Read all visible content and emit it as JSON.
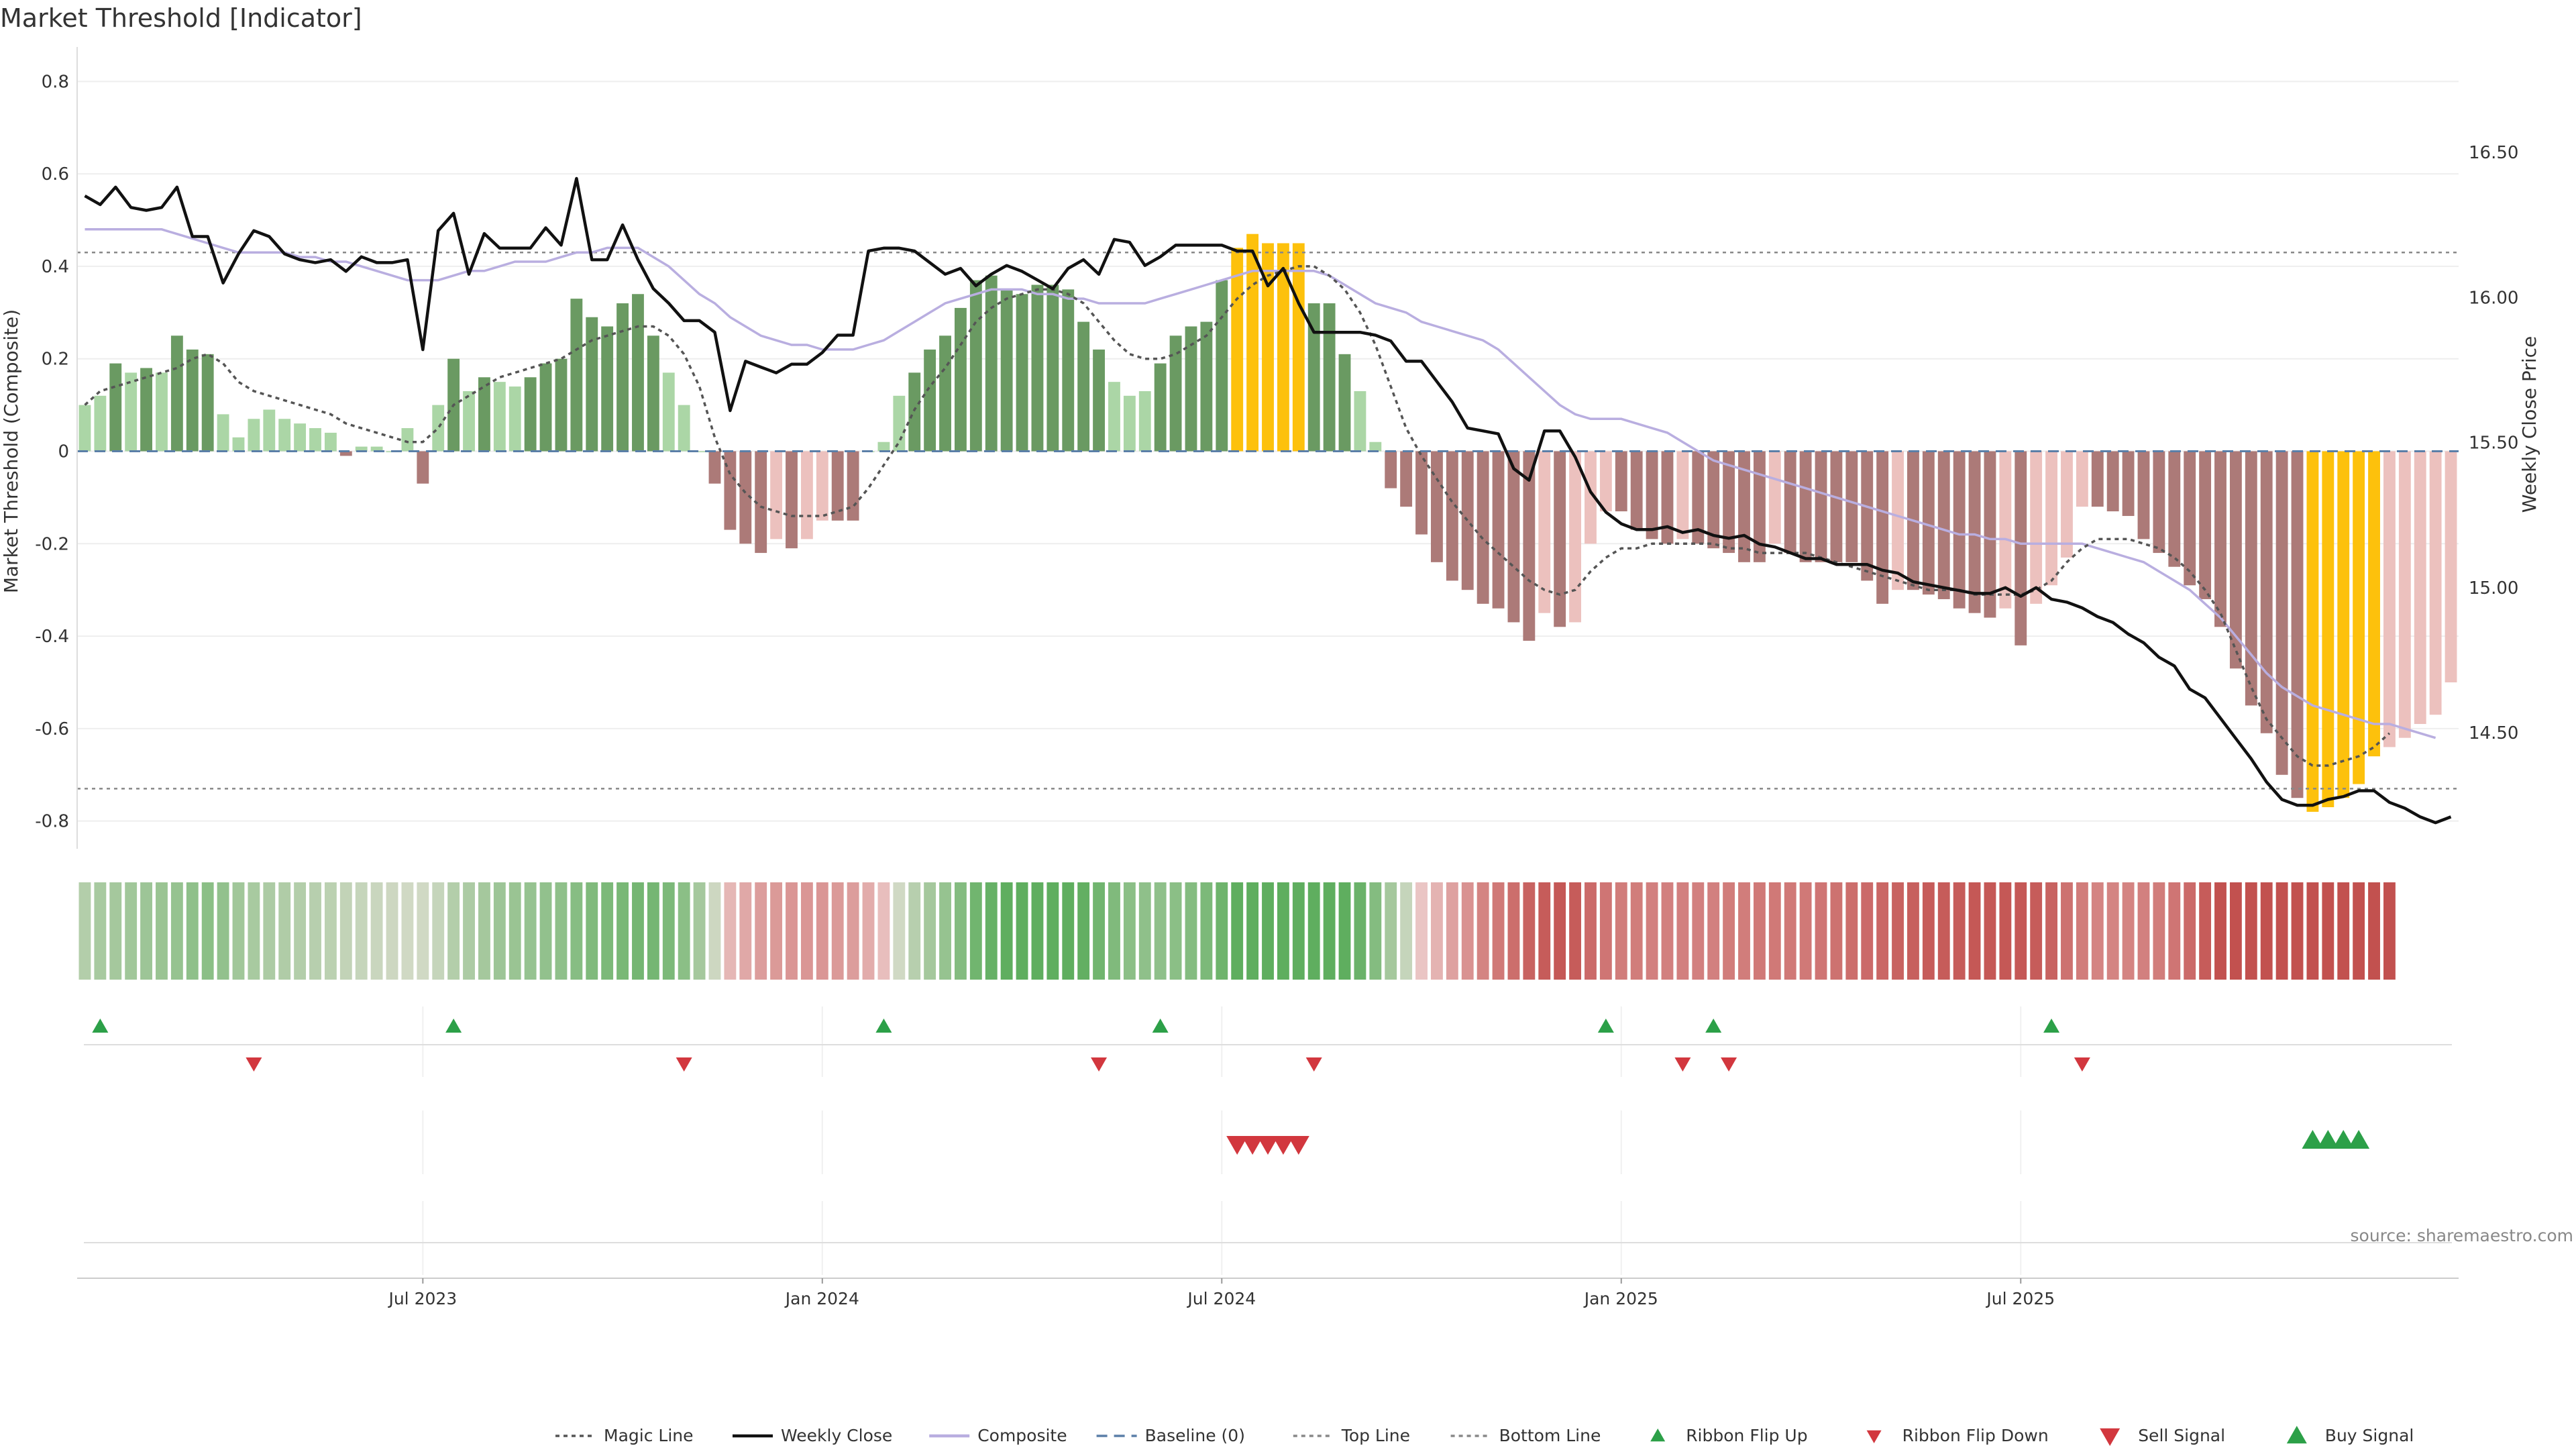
{
  "title": "Market Threshold [Indicator]",
  "source": "source: sharemaestro.com",
  "colors": {
    "bar_pos_strong": "#6a9a62",
    "bar_pos_weak": "#abd6a6",
    "bar_neg_strong": "#ac7a78",
    "bar_neg_weak": "#ecc1be",
    "highlight": "#fdc10c",
    "close_line": "#111111",
    "composite_line": "#b9aee0",
    "magic_line": "#555555",
    "baseline": "#5b7fa8",
    "level_line": "#888888",
    "flip_up": "#2ca048",
    "flip_down": "#d2373e",
    "ribbon_green": "#5fae5f",
    "ribbon_red": "#c2514f"
  },
  "chart_data": {
    "type": "bar",
    "title": "Market Threshold [Indicator]",
    "ylabel": "Market Threshold (Composite)",
    "y2label": "Weekly Close Price",
    "ylim": [
      -0.86,
      0.86
    ],
    "y2lim": [
      14.1,
      16.84
    ],
    "yticks": [
      "0.8",
      "0.6",
      "0.4",
      "0.2",
      "0",
      "-0.2",
      "-0.4",
      "-0.6",
      "-0.8"
    ],
    "yticks_values": [
      0.8,
      0.6,
      0.4,
      0.2,
      0,
      -0.2,
      -0.4,
      -0.6,
      -0.8
    ],
    "y2ticks": [
      "16.50",
      "16.00",
      "15.50",
      "15.00",
      "14.50"
    ],
    "y2ticks_values": [
      16.5,
      16.0,
      15.5,
      15.0,
      14.5
    ],
    "xticks": [
      "Jul 2023",
      "Jan 2024",
      "Jul 2024",
      "Jan 2025",
      "Jul 2025"
    ],
    "xticks_index": [
      22,
      48,
      74,
      100,
      126
    ],
    "top_line": 0.43,
    "bottom_line": -0.73,
    "composite": [
      0.1,
      0.12,
      0.19,
      0.17,
      0.18,
      0.17,
      0.25,
      0.22,
      0.21,
      0.08,
      0.03,
      0.07,
      0.09,
      0.07,
      0.06,
      0.05,
      0.04,
      -0.01,
      0.01,
      0.01,
      0.0,
      0.05,
      -0.07,
      0.1,
      0.2,
      0.13,
      0.16,
      0.15,
      0.14,
      0.16,
      0.19,
      0.2,
      0.33,
      0.29,
      0.27,
      0.32,
      0.34,
      0.25,
      0.17,
      0.1,
      0.0,
      -0.07,
      -0.17,
      -0.2,
      -0.22,
      -0.19,
      -0.21,
      -0.19,
      -0.15,
      -0.15,
      -0.15,
      0.0,
      0.02,
      0.12,
      0.17,
      0.22,
      0.25,
      0.31,
      0.37,
      0.38,
      0.35,
      0.34,
      0.36,
      0.36,
      0.35,
      0.28,
      0.22,
      0.15,
      0.12,
      0.13,
      0.19,
      0.25,
      0.27,
      0.28,
      0.37,
      0.44,
      0.47,
      0.45,
      0.45,
      0.45,
      0.32,
      0.32,
      0.21,
      0.13,
      0.02,
      -0.08,
      -0.12,
      -0.18,
      -0.24,
      -0.28,
      -0.3,
      -0.33,
      -0.34,
      -0.37,
      -0.41,
      -0.35,
      -0.38,
      -0.37,
      -0.2,
      -0.13,
      -0.13,
      -0.17,
      -0.19,
      -0.2,
      -0.19,
      -0.2,
      -0.21,
      -0.22,
      -0.24,
      -0.24,
      -0.2,
      -0.22,
      -0.24,
      -0.24,
      -0.24,
      -0.24,
      -0.28,
      -0.33,
      -0.3,
      -0.3,
      -0.31,
      -0.32,
      -0.34,
      -0.35,
      -0.36,
      -0.34,
      -0.42,
      -0.33,
      -0.29,
      -0.23,
      -0.12,
      -0.12,
      -0.13,
      -0.14,
      -0.19,
      -0.22,
      -0.25,
      -0.29,
      -0.32,
      -0.38,
      -0.47,
      -0.55,
      -0.61,
      -0.7,
      -0.75,
      -0.78,
      -0.77,
      -0.75,
      -0.72,
      -0.66,
      -0.64,
      -0.62,
      -0.59,
      -0.57,
      -0.5
    ],
    "weekly_close": [
      16.35,
      16.32,
      16.38,
      16.31,
      16.3,
      16.31,
      16.38,
      16.21,
      16.21,
      16.05,
      16.15,
      16.23,
      16.21,
      16.15,
      16.13,
      16.12,
      16.13,
      16.09,
      16.14,
      16.12,
      16.12,
      16.13,
      15.82,
      16.23,
      16.29,
      16.08,
      16.22,
      16.17,
      16.17,
      16.17,
      16.24,
      16.18,
      16.41,
      16.13,
      16.13,
      16.25,
      16.13,
      16.03,
      15.98,
      15.92,
      15.92,
      15.88,
      15.61,
      15.78,
      15.76,
      15.74,
      15.77,
      15.77,
      15.81,
      15.87,
      15.87,
      16.16,
      16.17,
      16.17,
      16.16,
      16.12,
      16.08,
      16.1,
      16.04,
      16.08,
      16.11,
      16.09,
      16.06,
      16.03,
      16.1,
      16.13,
      16.08,
      16.2,
      16.19,
      16.11,
      16.14,
      16.18,
      16.18,
      16.18,
      16.18,
      16.16,
      16.16,
      16.04,
      16.1,
      15.98,
      15.88,
      15.88,
      15.88,
      15.88,
      15.87,
      15.85,
      15.78,
      15.78,
      15.71,
      15.64,
      15.55,
      15.54,
      15.53,
      15.41,
      15.37,
      15.54,
      15.54,
      15.45,
      15.33,
      15.26,
      15.22,
      15.2,
      15.2,
      15.21,
      15.19,
      15.2,
      15.18,
      15.17,
      15.18,
      15.15,
      15.14,
      15.12,
      15.1,
      15.1,
      15.08,
      15.08,
      15.08,
      15.06,
      15.05,
      15.02,
      15.01,
      15.0,
      14.99,
      14.98,
      14.98,
      15.0,
      14.97,
      15.0,
      14.96,
      14.95,
      14.93,
      14.9,
      14.88,
      14.84,
      14.81,
      14.76,
      14.73,
      14.65,
      14.62,
      14.55,
      14.48,
      14.41,
      14.33,
      14.27,
      14.25,
      14.25,
      14.27,
      14.28,
      14.3,
      14.3,
      14.26,
      14.24,
      14.21,
      14.19,
      14.21
    ],
    "magic_line": [
      0.1,
      0.13,
      0.14,
      0.15,
      0.16,
      0.17,
      0.18,
      0.2,
      0.21,
      0.19,
      0.15,
      0.13,
      0.12,
      0.11,
      0.1,
      0.09,
      0.08,
      0.06,
      0.05,
      0.04,
      0.03,
      0.02,
      0.02,
      0.05,
      0.1,
      0.12,
      0.14,
      0.16,
      0.17,
      0.18,
      0.19,
      0.2,
      0.22,
      0.24,
      0.25,
      0.26,
      0.27,
      0.27,
      0.25,
      0.21,
      0.14,
      0.03,
      -0.05,
      -0.09,
      -0.12,
      -0.13,
      -0.14,
      -0.14,
      -0.14,
      -0.13,
      -0.12,
      -0.08,
      -0.03,
      0.02,
      0.09,
      0.14,
      0.18,
      0.23,
      0.28,
      0.31,
      0.33,
      0.34,
      0.35,
      0.35,
      0.34,
      0.32,
      0.28,
      0.24,
      0.21,
      0.2,
      0.2,
      0.21,
      0.23,
      0.25,
      0.29,
      0.33,
      0.36,
      0.38,
      0.39,
      0.4,
      0.4,
      0.38,
      0.35,
      0.3,
      0.23,
      0.14,
      0.05,
      -0.01,
      -0.06,
      -0.11,
      -0.15,
      -0.19,
      -0.22,
      -0.25,
      -0.28,
      -0.3,
      -0.31,
      -0.3,
      -0.26,
      -0.23,
      -0.21,
      -0.21,
      -0.2,
      -0.2,
      -0.2,
      -0.2,
      -0.2,
      -0.21,
      -0.21,
      -0.22,
      -0.22,
      -0.22,
      -0.22,
      -0.23,
      -0.24,
      -0.25,
      -0.26,
      -0.27,
      -0.28,
      -0.29,
      -0.3,
      -0.3,
      -0.3,
      -0.31,
      -0.31,
      -0.31,
      -0.31,
      -0.3,
      -0.28,
      -0.24,
      -0.21,
      -0.19,
      -0.19,
      -0.19,
      -0.2,
      -0.21,
      -0.23,
      -0.26,
      -0.3,
      -0.35,
      -0.43,
      -0.51,
      -0.58,
      -0.62,
      -0.66,
      -0.68,
      -0.68,
      -0.67,
      -0.66,
      -0.64,
      -0.61
    ],
    "composite_smooth": [
      0.48,
      0.48,
      0.48,
      0.48,
      0.48,
      0.48,
      0.47,
      0.46,
      0.45,
      0.44,
      0.43,
      0.43,
      0.43,
      0.43,
      0.42,
      0.42,
      0.41,
      0.41,
      0.4,
      0.39,
      0.38,
      0.37,
      0.37,
      0.37,
      0.38,
      0.39,
      0.39,
      0.4,
      0.41,
      0.41,
      0.41,
      0.42,
      0.43,
      0.43,
      0.44,
      0.44,
      0.44,
      0.42,
      0.4,
      0.37,
      0.34,
      0.32,
      0.29,
      0.27,
      0.25,
      0.24,
      0.23,
      0.23,
      0.22,
      0.22,
      0.22,
      0.23,
      0.24,
      0.26,
      0.28,
      0.3,
      0.32,
      0.33,
      0.34,
      0.35,
      0.35,
      0.35,
      0.34,
      0.34,
      0.33,
      0.33,
      0.32,
      0.32,
      0.32,
      0.32,
      0.33,
      0.34,
      0.35,
      0.36,
      0.37,
      0.38,
      0.39,
      0.39,
      0.39,
      0.39,
      0.39,
      0.38,
      0.36,
      0.34,
      0.32,
      0.31,
      0.3,
      0.28,
      0.27,
      0.26,
      0.25,
      0.24,
      0.22,
      0.19,
      0.16,
      0.13,
      0.1,
      0.08,
      0.07,
      0.07,
      0.07,
      0.06,
      0.05,
      0.04,
      0.02,
      0.0,
      -0.02,
      -0.03,
      -0.04,
      -0.05,
      -0.06,
      -0.07,
      -0.08,
      -0.09,
      -0.1,
      -0.11,
      -0.12,
      -0.13,
      -0.14,
      -0.15,
      -0.16,
      -0.17,
      -0.18,
      -0.18,
      -0.19,
      -0.19,
      -0.2,
      -0.2,
      -0.2,
      -0.2,
      -0.2,
      -0.21,
      -0.22,
      -0.23,
      -0.24,
      -0.26,
      -0.28,
      -0.3,
      -0.33,
      -0.36,
      -0.4,
      -0.44,
      -0.48,
      -0.51,
      -0.53,
      -0.55,
      -0.56,
      -0.57,
      -0.58,
      -0.59,
      -0.59,
      -0.6,
      -0.61,
      -0.62
    ],
    "highlight_index": [
      75,
      76,
      77,
      78,
      79,
      145,
      146,
      147,
      148,
      149
    ],
    "ribbon_flip_up": [
      1,
      24,
      52,
      70,
      99,
      106,
      128
    ],
    "ribbon_flip_down": [
      11,
      39,
      66,
      80,
      104,
      107,
      130
    ],
    "sell_signal": [
      75,
      76,
      77,
      78,
      79
    ],
    "buy_signal": [
      145,
      146,
      147,
      148
    ]
  },
  "legend": [
    {
      "label": "Magic Line",
      "kind": "dotted",
      "color": "#555555"
    },
    {
      "label": "Weekly Close",
      "kind": "solid",
      "color": "#111111"
    },
    {
      "label": "Composite",
      "kind": "solid",
      "color": "#b9aee0"
    },
    {
      "label": "Baseline (0)",
      "kind": "dashed",
      "color": "#5b7fa8"
    },
    {
      "label": "Top Line",
      "kind": "dotted",
      "color": "#888888"
    },
    {
      "label": "Bottom Line",
      "kind": "dotted",
      "color": "#888888"
    },
    {
      "label": "Ribbon Flip Up",
      "kind": "tri-up",
      "color": "#2ca048"
    },
    {
      "label": "Ribbon Flip Down",
      "kind": "tri-down",
      "color": "#d2373e"
    },
    {
      "label": "Sell Signal",
      "kind": "tri-down-lg",
      "color": "#d2373e"
    },
    {
      "label": "Buy Signal",
      "kind": "tri-up-lg",
      "color": "#2ca048"
    }
  ]
}
